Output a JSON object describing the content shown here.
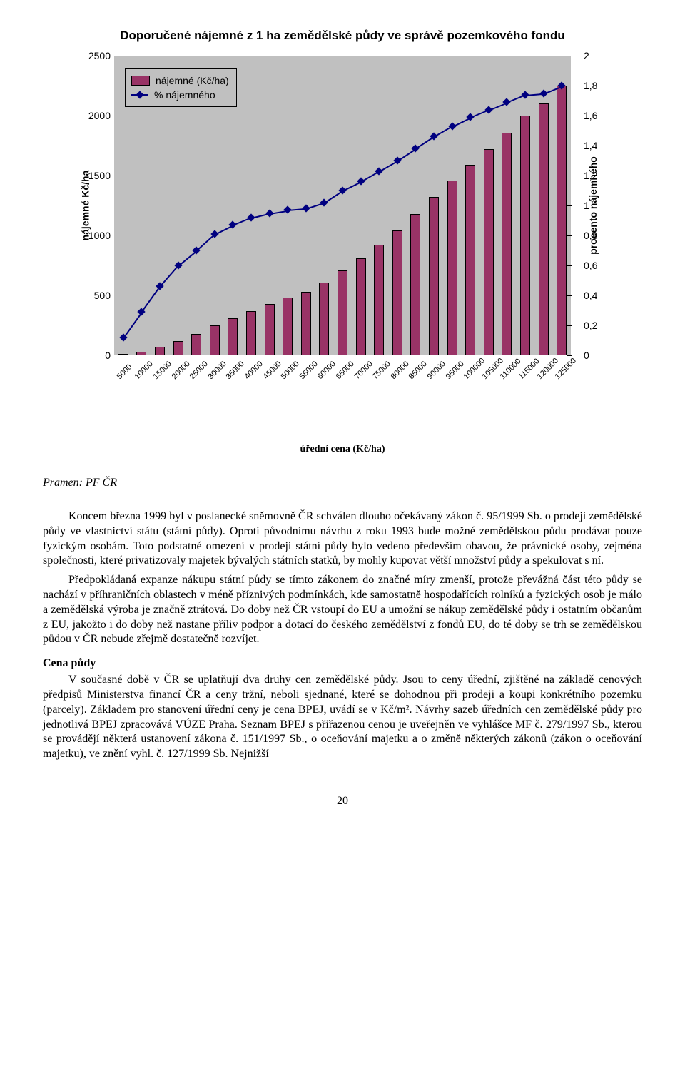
{
  "chart": {
    "title": "Doporučené nájemné z 1 ha zemědělské půdy ve správě pozemkového fondu",
    "y_left_label": "nájemné Kč/ha",
    "y_right_label": "procento nájemného",
    "x_label": "úřední cena (Kč/ha)",
    "plot_bg": "#c0c0c0",
    "bar_color": "#993366",
    "line_color": "#000080",
    "marker_color": "#000080",
    "categories": [
      "5000",
      "10000",
      "15000",
      "20000",
      "25000",
      "30000",
      "35000",
      "40000",
      "45000",
      "50000",
      "55000",
      "60000",
      "65000",
      "70000",
      "75000",
      "80000",
      "85000",
      "90000",
      "95000",
      "100000",
      "105000",
      "110000",
      "115000",
      "120000",
      "125000"
    ],
    "bar_values": [
      5,
      30,
      70,
      120,
      180,
      250,
      310,
      370,
      430,
      480,
      530,
      610,
      710,
      810,
      920,
      1040,
      1180,
      1320,
      1460,
      1590,
      1720,
      1860,
      2000,
      2100,
      2250
    ],
    "line_values": [
      0.12,
      0.29,
      0.46,
      0.6,
      0.7,
      0.81,
      0.87,
      0.92,
      0.95,
      0.97,
      0.98,
      1.02,
      1.1,
      1.16,
      1.23,
      1.3,
      1.38,
      1.46,
      1.53,
      1.59,
      1.64,
      1.69,
      1.74,
      1.75,
      1.8
    ],
    "y_left": {
      "min": 0,
      "max": 2500,
      "ticks": [
        0,
        500,
        1000,
        1500,
        2000,
        2500
      ]
    },
    "y_right": {
      "min": 0,
      "max": 2,
      "ticks": [
        "0",
        "0,2",
        "0,4",
        "0,6",
        "0,8",
        "1",
        "1,2",
        "1,4",
        "1,6",
        "1,8",
        "2"
      ],
      "tick_vals": [
        0,
        0.2,
        0.4,
        0.6,
        0.8,
        1,
        1.2,
        1.4,
        1.6,
        1.8,
        2
      ]
    },
    "legend": {
      "bar": "nájemné (Kč/ha)",
      "line": "% nájemného"
    }
  },
  "source": "Pramen: PF ČR",
  "para1": "Koncem března 1999 byl v poslanecké sněmovně ČR schválen dlouho očekávaný zákon č. 95/1999 Sb. o prodeji zemědělské půdy ve vlastnictví státu (státní půdy). Oproti původnímu návrhu z roku 1993 bude možné zemědělskou půdu prodávat pouze fyzickým osobám. Toto podstatné omezení v prodeji státní půdy bylo vedeno především obavou, že právnické osoby, zejména společnosti, které privatizovaly majetek bývalých státních statků, by mohly kupovat větší množství půdy a spekulovat s ní.",
  "para2": "Předpokládaná expanze nákupu státní půdy se tímto zákonem do značné míry zmenší, protože převážná část této půdy se nachází v příhraničních oblastech v méně příznivých podmínkách, kde samostatně hospodařících rolníků a fyzických osob je málo a zemědělská výroba je značně ztrátová. Do doby než ČR vstoupí do EU a umožní se nákup zemědělské půdy i ostatním občanům z EU, jakožto i do doby než nastane příliv podpor a dotací do českého zemědělství z fondů EU, do té doby se trh se zemědělskou půdou v ČR nebude zřejmě dostatečně rozvíjet.",
  "section_head": "Cena půdy",
  "para3": "V současné době v ČR se uplatňují dva druhy cen zemědělské půdy. Jsou to ceny úřední, zjištěné na základě cenových předpisů Ministerstva financí ČR a ceny tržní, neboli sjednané, které se dohodnou při prodeji a koupi konkrétního pozemku (parcely). Základem pro stanovení úřední ceny je cena BPEJ, uvádí se v Kč/m². Návrhy sazeb úředních cen zemědělské půdy pro jednotlivá BPEJ zpracovává VÚZE Praha. Seznam BPEJ s přiřazenou cenou je uveřejněn ve vyhlášce MF č. 279/1997 Sb., kterou se provádějí některá ustanovení zákona č. 151/1997 Sb., o oceňování majetku a o změně některých zákonů (zákon o oceňování majetku), ve znění vyhl. č. 127/1999 Sb. Nejnižší",
  "page_number": "20"
}
